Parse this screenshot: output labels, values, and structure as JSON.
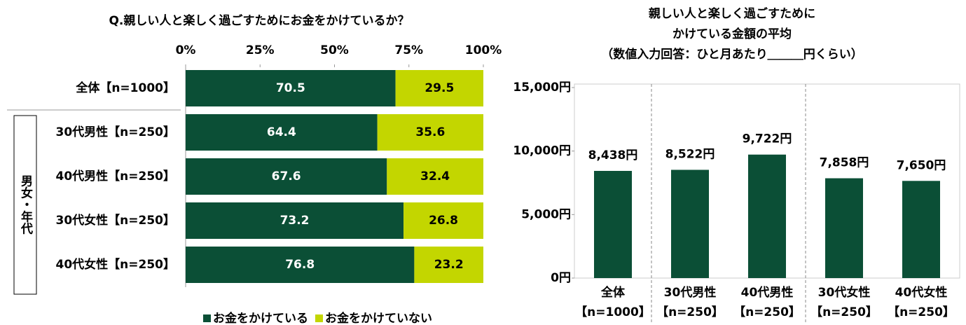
{
  "chart_data": [
    {
      "type": "stacked-barh",
      "title": "Q.親しい人と楽しく過ごすためにお金をかけているか？",
      "categories": [
        "全体【n=1000】",
        "30代男性【n=250】",
        "40代男性【n=250】",
        "30代女性【n=250】",
        "40代女性【n=250】"
      ],
      "group_label": "男女・年代",
      "series": [
        {
          "name": "お金をかけている",
          "color": "#0b4f36",
          "values": [
            70.5,
            64.4,
            67.6,
            73.2,
            76.8
          ]
        },
        {
          "name": "お金をかけていない",
          "color": "#c3d600",
          "values": [
            29.5,
            35.6,
            32.4,
            26.8,
            23.2
          ]
        }
      ],
      "xlim": [
        0,
        100
      ],
      "xticks": [
        {
          "value": 0,
          "label": "0%"
        },
        {
          "value": 25,
          "label": "25%"
        },
        {
          "value": 50,
          "label": "50%"
        },
        {
          "value": 75,
          "label": "75%"
        },
        {
          "value": 100,
          "label": "100%"
        }
      ],
      "legend": "bottom"
    },
    {
      "type": "bar",
      "title": [
        "親しい人と楽しく過ごすために",
        "かけている金額の平均",
        "（数値入力回答：ひと月あたり＿＿＿円くらい）"
      ],
      "categories": [
        [
          "全体",
          "【n=1000】"
        ],
        [
          "30代男性",
          "【n=250】"
        ],
        [
          "40代男性",
          "【n=250】"
        ],
        [
          "30代女性",
          "【n=250】"
        ],
        [
          "40代女性",
          "【n=250】"
        ]
      ],
      "values": [
        8438,
        8522,
        9722,
        7858,
        7650
      ],
      "value_labels": [
        "8,438円",
        "8,522円",
        "9,722円",
        "7,858円",
        "7,650円"
      ],
      "color": "#0b4f36",
      "ylim": [
        0,
        15000
      ],
      "yticks": [
        {
          "value": 0,
          "label": "0円"
        },
        {
          "value": 5000,
          "label": "5,000円"
        },
        {
          "value": 10000,
          "label": "10,000円"
        },
        {
          "value": 15000,
          "label": "15,000円"
        }
      ]
    }
  ]
}
